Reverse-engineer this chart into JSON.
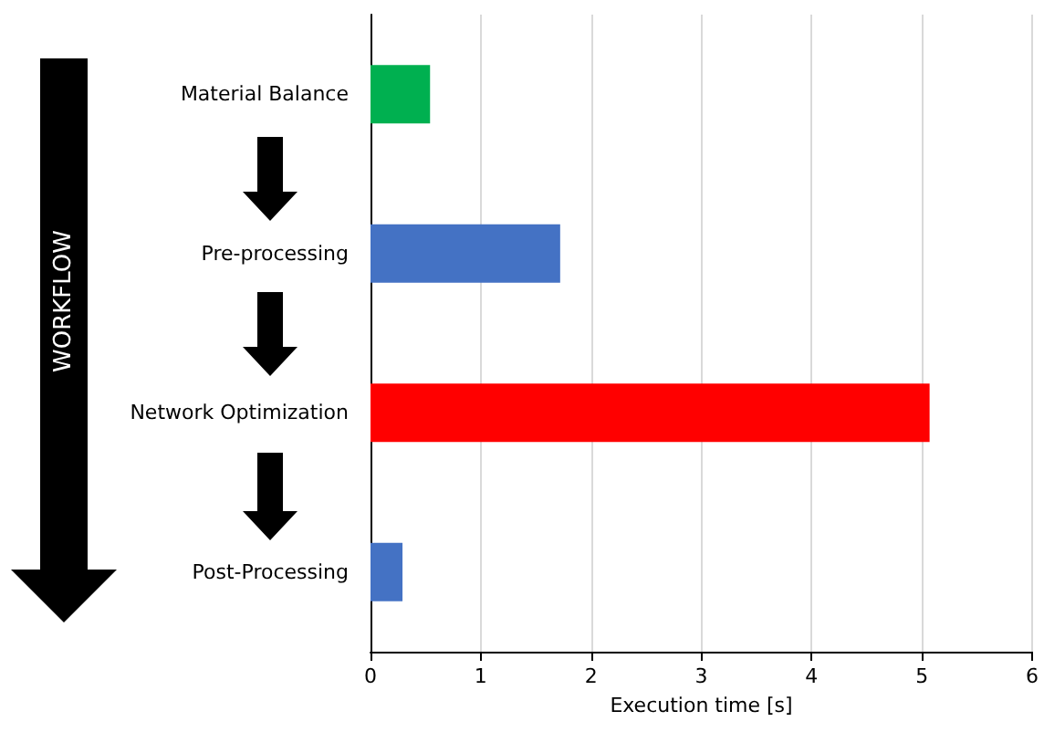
{
  "chart_data": {
    "type": "bar",
    "orientation": "horizontal",
    "xlabel": "Execution time [s]",
    "categories": [
      "Material Balance",
      "Pre-processing",
      "Network Optimization",
      "Post-Processing"
    ],
    "values": [
      0.54,
      1.72,
      5.07,
      0.29
    ],
    "colors": [
      "#00b050",
      "#4472c4",
      "#ff0000",
      "#4472c4"
    ],
    "xlim": [
      0,
      6
    ],
    "xticks": [
      0,
      1,
      2,
      3,
      4,
      5,
      6
    ],
    "grid": "x",
    "annotations": [
      "WORKFLOW"
    ]
  }
}
